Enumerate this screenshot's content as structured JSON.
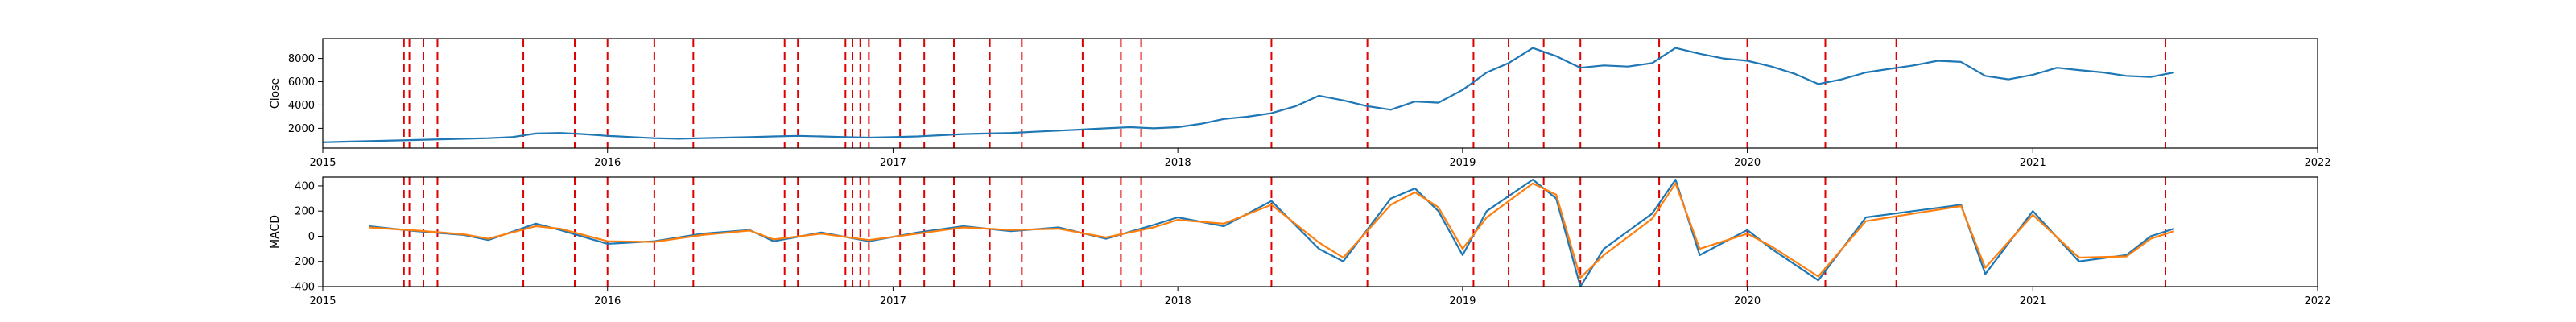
{
  "chart_data": [
    {
      "type": "line",
      "ylabel": "Close",
      "xlim": [
        "2015-01-01",
        "2022-01-01"
      ],
      "ylim": [
        300,
        9700
      ],
      "x_ticks": [
        "2015",
        "2016",
        "2017",
        "2018",
        "2019",
        "2020",
        "2021",
        "2022"
      ],
      "y_ticks": [
        2000,
        4000,
        6000,
        8000
      ],
      "grid": false,
      "series": [
        {
          "color": "#1f77b4",
          "points": [
            [
              "2015-01-01",
              800
            ],
            [
              "2015-02-01",
              850
            ],
            [
              "2015-03-01",
              900
            ],
            [
              "2015-04-01",
              950
            ],
            [
              "2015-05-01",
              1000
            ],
            [
              "2015-06-01",
              1050
            ],
            [
              "2015-07-01",
              1100
            ],
            [
              "2015-08-01",
              1150
            ],
            [
              "2015-09-01",
              1250
            ],
            [
              "2015-10-01",
              1550
            ],
            [
              "2015-11-01",
              1600
            ],
            [
              "2015-12-01",
              1500
            ],
            [
              "2016-01-01",
              1350
            ],
            [
              "2016-02-01",
              1250
            ],
            [
              "2016-03-01",
              1150
            ],
            [
              "2016-04-01",
              1100
            ],
            [
              "2016-05-01",
              1150
            ],
            [
              "2016-06-01",
              1200
            ],
            [
              "2016-07-01",
              1250
            ],
            [
              "2016-08-01",
              1300
            ],
            [
              "2016-09-01",
              1350
            ],
            [
              "2016-10-01",
              1300
            ],
            [
              "2016-11-01",
              1250
            ],
            [
              "2016-12-01",
              1200
            ],
            [
              "2017-01-01",
              1250
            ],
            [
              "2017-02-01",
              1300
            ],
            [
              "2017-03-01",
              1400
            ],
            [
              "2017-04-01",
              1500
            ],
            [
              "2017-05-01",
              1550
            ],
            [
              "2017-06-01",
              1600
            ],
            [
              "2017-07-01",
              1700
            ],
            [
              "2017-08-01",
              1800
            ],
            [
              "2017-09-01",
              1900
            ],
            [
              "2017-10-01",
              2000
            ],
            [
              "2017-11-01",
              2100
            ],
            [
              "2017-12-01",
              2000
            ],
            [
              "2018-01-01",
              2100
            ],
            [
              "2018-02-01",
              2400
            ],
            [
              "2018-03-01",
              2800
            ],
            [
              "2018-04-01",
              3000
            ],
            [
              "2018-05-01",
              3300
            ],
            [
              "2018-06-01",
              3900
            ],
            [
              "2018-07-01",
              4800
            ],
            [
              "2018-08-01",
              4400
            ],
            [
              "2018-09-01",
              3900
            ],
            [
              "2018-10-01",
              3600
            ],
            [
              "2018-11-01",
              4300
            ],
            [
              "2018-12-01",
              4200
            ],
            [
              "2019-01-01",
              5300
            ],
            [
              "2019-02-01",
              6800
            ],
            [
              "2019-03-01",
              7600
            ],
            [
              "2019-04-01",
              8900
            ],
            [
              "2019-05-01",
              8200
            ],
            [
              "2019-06-01",
              7200
            ],
            [
              "2019-07-01",
              7400
            ],
            [
              "2019-08-01",
              7300
            ],
            [
              "2019-09-01",
              7600
            ],
            [
              "2019-10-01",
              8900
            ],
            [
              "2019-11-01",
              8400
            ],
            [
              "2019-12-01",
              8000
            ],
            [
              "2020-01-01",
              7800
            ],
            [
              "2020-02-01",
              7300
            ],
            [
              "2020-03-01",
              6700
            ],
            [
              "2020-04-01",
              5800
            ],
            [
              "2020-05-01",
              6200
            ],
            [
              "2020-06-01",
              6800
            ],
            [
              "2020-07-01",
              7100
            ],
            [
              "2020-08-01",
              7400
            ],
            [
              "2020-09-01",
              7800
            ],
            [
              "2020-10-01",
              7700
            ],
            [
              "2020-11-01",
              6500
            ],
            [
              "2020-12-01",
              6200
            ],
            [
              "2021-01-01",
              6600
            ],
            [
              "2021-02-01",
              7200
            ],
            [
              "2021-03-01",
              7000
            ],
            [
              "2021-04-01",
              6800
            ],
            [
              "2021-05-01",
              6500
            ],
            [
              "2021-06-01",
              6400
            ],
            [
              "2021-07-01",
              6800
            ]
          ]
        }
      ]
    },
    {
      "type": "line",
      "ylabel": "MACD",
      "xlim": [
        "2015-01-01",
        "2022-01-01"
      ],
      "ylim": [
        -400,
        470
      ],
      "x_ticks": [
        "2015",
        "2016",
        "2017",
        "2018",
        "2019",
        "2020",
        "2021",
        "2022"
      ],
      "y_ticks": [
        -400,
        -200,
        0,
        200,
        400
      ],
      "grid": false,
      "series": [
        {
          "color": "#1f77b4",
          "points": [
            [
              "2015-03-01",
              80
            ],
            [
              "2015-05-01",
              40
            ],
            [
              "2015-07-01",
              10
            ],
            [
              "2015-08-01",
              -30
            ],
            [
              "2015-10-01",
              100
            ],
            [
              "2015-11-01",
              50
            ],
            [
              "2016-01-01",
              -60
            ],
            [
              "2016-03-01",
              -40
            ],
            [
              "2016-05-01",
              20
            ],
            [
              "2016-07-01",
              50
            ],
            [
              "2016-08-01",
              -40
            ],
            [
              "2016-10-01",
              30
            ],
            [
              "2016-12-01",
              -40
            ],
            [
              "2017-02-01",
              30
            ],
            [
              "2017-04-01",
              80
            ],
            [
              "2017-06-01",
              40
            ],
            [
              "2017-08-01",
              70
            ],
            [
              "2017-10-01",
              -20
            ],
            [
              "2017-12-01",
              90
            ],
            [
              "2018-01-01",
              150
            ],
            [
              "2018-03-01",
              80
            ],
            [
              "2018-05-01",
              280
            ],
            [
              "2018-07-01",
              -100
            ],
            [
              "2018-08-01",
              -200
            ],
            [
              "2018-10-01",
              300
            ],
            [
              "2018-11-01",
              380
            ],
            [
              "2018-12-01",
              200
            ],
            [
              "2019-01-01",
              -150
            ],
            [
              "2019-02-01",
              200
            ],
            [
              "2019-04-01",
              450
            ],
            [
              "2019-05-01",
              300
            ],
            [
              "2019-06-01",
              -400
            ],
            [
              "2019-07-01",
              -100
            ],
            [
              "2019-09-01",
              180
            ],
            [
              "2019-10-01",
              450
            ],
            [
              "2019-11-01",
              -150
            ],
            [
              "2020-01-01",
              50
            ],
            [
              "2020-02-01",
              -100
            ],
            [
              "2020-04-01",
              -350
            ],
            [
              "2020-06-01",
              150
            ],
            [
              "2020-08-01",
              200
            ],
            [
              "2020-10-01",
              250
            ],
            [
              "2020-11-01",
              -300
            ],
            [
              "2021-01-01",
              200
            ],
            [
              "2021-03-01",
              -200
            ],
            [
              "2021-05-01",
              -150
            ],
            [
              "2021-06-01",
              0
            ],
            [
              "2021-07-01",
              60
            ]
          ]
        },
        {
          "color": "#ff7f0e",
          "points": [
            [
              "2015-03-01",
              70
            ],
            [
              "2015-05-01",
              45
            ],
            [
              "2015-07-01",
              15
            ],
            [
              "2015-08-01",
              -20
            ],
            [
              "2015-10-01",
              80
            ],
            [
              "2015-11-01",
              60
            ],
            [
              "2016-01-01",
              -40
            ],
            [
              "2016-03-01",
              -45
            ],
            [
              "2016-05-01",
              10
            ],
            [
              "2016-07-01",
              45
            ],
            [
              "2016-08-01",
              -25
            ],
            [
              "2016-10-01",
              20
            ],
            [
              "2016-12-01",
              -30
            ],
            [
              "2017-02-01",
              20
            ],
            [
              "2017-04-01",
              70
            ],
            [
              "2017-06-01",
              50
            ],
            [
              "2017-08-01",
              60
            ],
            [
              "2017-10-01",
              -10
            ],
            [
              "2017-12-01",
              70
            ],
            [
              "2018-01-01",
              130
            ],
            [
              "2018-03-01",
              100
            ],
            [
              "2018-05-01",
              250
            ],
            [
              "2018-07-01",
              -50
            ],
            [
              "2018-08-01",
              -170
            ],
            [
              "2018-10-01",
              250
            ],
            [
              "2018-11-01",
              350
            ],
            [
              "2018-12-01",
              230
            ],
            [
              "2019-01-01",
              -100
            ],
            [
              "2019-02-01",
              150
            ],
            [
              "2019-04-01",
              420
            ],
            [
              "2019-05-01",
              330
            ],
            [
              "2019-06-01",
              -330
            ],
            [
              "2019-07-01",
              -150
            ],
            [
              "2019-09-01",
              140
            ],
            [
              "2019-10-01",
              420
            ],
            [
              "2019-11-01",
              -100
            ],
            [
              "2020-01-01",
              20
            ],
            [
              "2020-02-01",
              -80
            ],
            [
              "2020-04-01",
              -320
            ],
            [
              "2020-06-01",
              120
            ],
            [
              "2020-08-01",
              180
            ],
            [
              "2020-10-01",
              240
            ],
            [
              "2020-11-01",
              -250
            ],
            [
              "2021-01-01",
              170
            ],
            [
              "2021-03-01",
              -170
            ],
            [
              "2021-05-01",
              -160
            ],
            [
              "2021-06-01",
              -20
            ],
            [
              "2021-07-01",
              40
            ]
          ]
        }
      ]
    }
  ],
  "event_markers": {
    "color": "#ff0000",
    "style": "dashed",
    "dates": [
      "2015-04-15",
      "2015-04-22",
      "2015-05-10",
      "2015-05-28",
      "2015-09-15",
      "2015-11-20",
      "2016-01-01",
      "2016-03-01",
      "2016-04-20",
      "2016-08-15",
      "2016-09-01",
      "2016-11-01",
      "2016-11-10",
      "2016-11-20",
      "2016-12-01",
      "2017-01-10",
      "2017-02-10",
      "2017-03-20",
      "2017-05-05",
      "2017-06-15",
      "2017-09-01",
      "2017-10-20",
      "2017-11-15",
      "2018-05-01",
      "2018-09-01",
      "2019-01-15",
      "2019-03-01",
      "2019-04-15",
      "2019-06-01",
      "2019-09-10",
      "2020-01-01",
      "2020-04-10",
      "2020-07-10",
      "2021-06-20"
    ]
  }
}
